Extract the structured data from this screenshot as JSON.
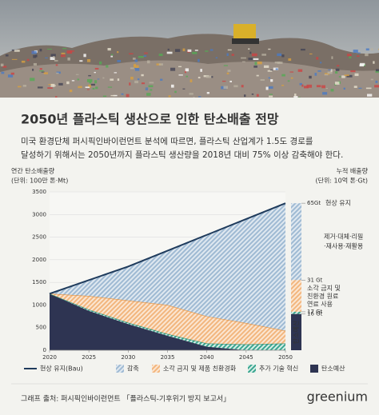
{
  "chart_data": {
    "type": "stacked_area",
    "title": "2050년 플라스틱 생산으로 인한 탄소배출 전망",
    "description": [
      "미국 환경단체 퍼시픽인바이런먼트 분석에 따르면, 플라스틱 산업계가 1.5도 경로를",
      "달성하기 위해서는 2050년까지 플라스틱 생산량을 2018년 대비 75% 이상 감축해야 한다."
    ],
    "y_label": [
      "연간 탄소배출량",
      "(단위: 100만 톤·Mt)"
    ],
    "y2_label": [
      "누적 배출량",
      "(단위: 10억 톤·Gt)"
    ],
    "x": [
      2020,
      2025,
      2030,
      2035,
      2040,
      2045,
      2050
    ],
    "xlim": [
      2020,
      2050
    ],
    "xticks": [
      2020,
      2025,
      2030,
      2035,
      2040,
      2045,
      2050
    ],
    "ylim": [
      0,
      3500
    ],
    "yticks": [
      0,
      500,
      1000,
      1500,
      2000,
      2500,
      3000,
      3500
    ],
    "grid": true,
    "line": {
      "name": "현상 유지(Bau)",
      "color": "#1f3b5c",
      "values": [
        1250,
        1550,
        1850,
        2200,
        2550,
        2900,
        3250
      ]
    },
    "series": [
      {
        "name": "탄소예산",
        "color": "#2e3452",
        "values": [
          1250,
          870,
          580,
          320,
          80,
          0,
          0
        ]
      },
      {
        "name": "추가 기술 혁신",
        "color": "#3aa58f",
        "values": [
          0,
          30,
          30,
          40,
          70,
          130,
          150
        ]
      },
      {
        "name": "소각 금지 및 제품 친환경화",
        "color": "#f2b67e",
        "values": [
          0,
          300,
          490,
          640,
          600,
          470,
          280
        ]
      },
      {
        "name": "감축",
        "color": "#9fbad3",
        "values": [
          0,
          350,
          750,
          1200,
          1800,
          2300,
          2820
        ]
      }
    ],
    "y2lim": [
      0,
      70
    ],
    "cumulative": [
      {
        "value": 65,
        "label": "65Gt",
        "text": [
          "현상 유지"
        ],
        "color": "#9fbad3"
      },
      {
        "value": 31,
        "label": "31 Gt",
        "text": [
          "소각 금지 및",
          "친환경 원료",
          "연료 사용"
        ],
        "color": "#f2b67e"
      },
      {
        "value": 17,
        "label": "17 Gt",
        "text": [],
        "color": "#3aa58f"
      },
      {
        "value": 16,
        "label": "16 Gt",
        "text": [],
        "color": "#2e3452"
      }
    ],
    "reduction_label": [
      "제거·대체·리필",
      "·재사용·재활용"
    ],
    "budget_bar_label": "탄소예산",
    "source": "그래프 출처: 퍼시픽인바이런먼트 「플라스틱-기후위기 방지 보고서」",
    "logo": "greenium"
  }
}
